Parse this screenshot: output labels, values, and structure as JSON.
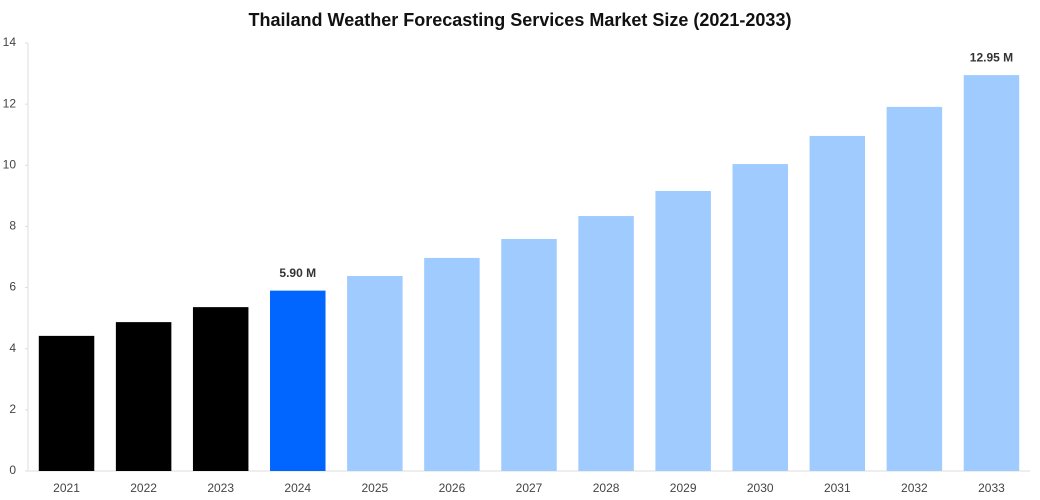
{
  "chart_data": {
    "type": "bar",
    "title": "Thailand Weather Forecasting Services Market Size (2021-2033)",
    "categories": [
      "2021",
      "2022",
      "2023",
      "2024",
      "2025",
      "2026",
      "2027",
      "2028",
      "2029",
      "2030",
      "2031",
      "2032",
      "2033"
    ],
    "values": [
      4.42,
      4.87,
      5.36,
      5.9,
      6.38,
      6.97,
      7.59,
      8.34,
      9.16,
      10.04,
      10.96,
      11.91,
      12.95
    ],
    "value_labels": [
      null,
      null,
      null,
      "5.90 M",
      null,
      null,
      null,
      null,
      null,
      null,
      null,
      null,
      "12.95 M"
    ],
    "colors": [
      "#000000",
      "#000000",
      "#000000",
      "#0066ff",
      "#a0cbff",
      "#a0cbff",
      "#a0cbff",
      "#a0cbff",
      "#a0cbff",
      "#a0cbff",
      "#a0cbff",
      "#a0cbff",
      "#a0cbff"
    ],
    "ylim": [
      0,
      14
    ],
    "yticks": [
      0,
      2,
      4,
      6,
      8,
      10,
      12,
      14
    ],
    "grid": false
  }
}
